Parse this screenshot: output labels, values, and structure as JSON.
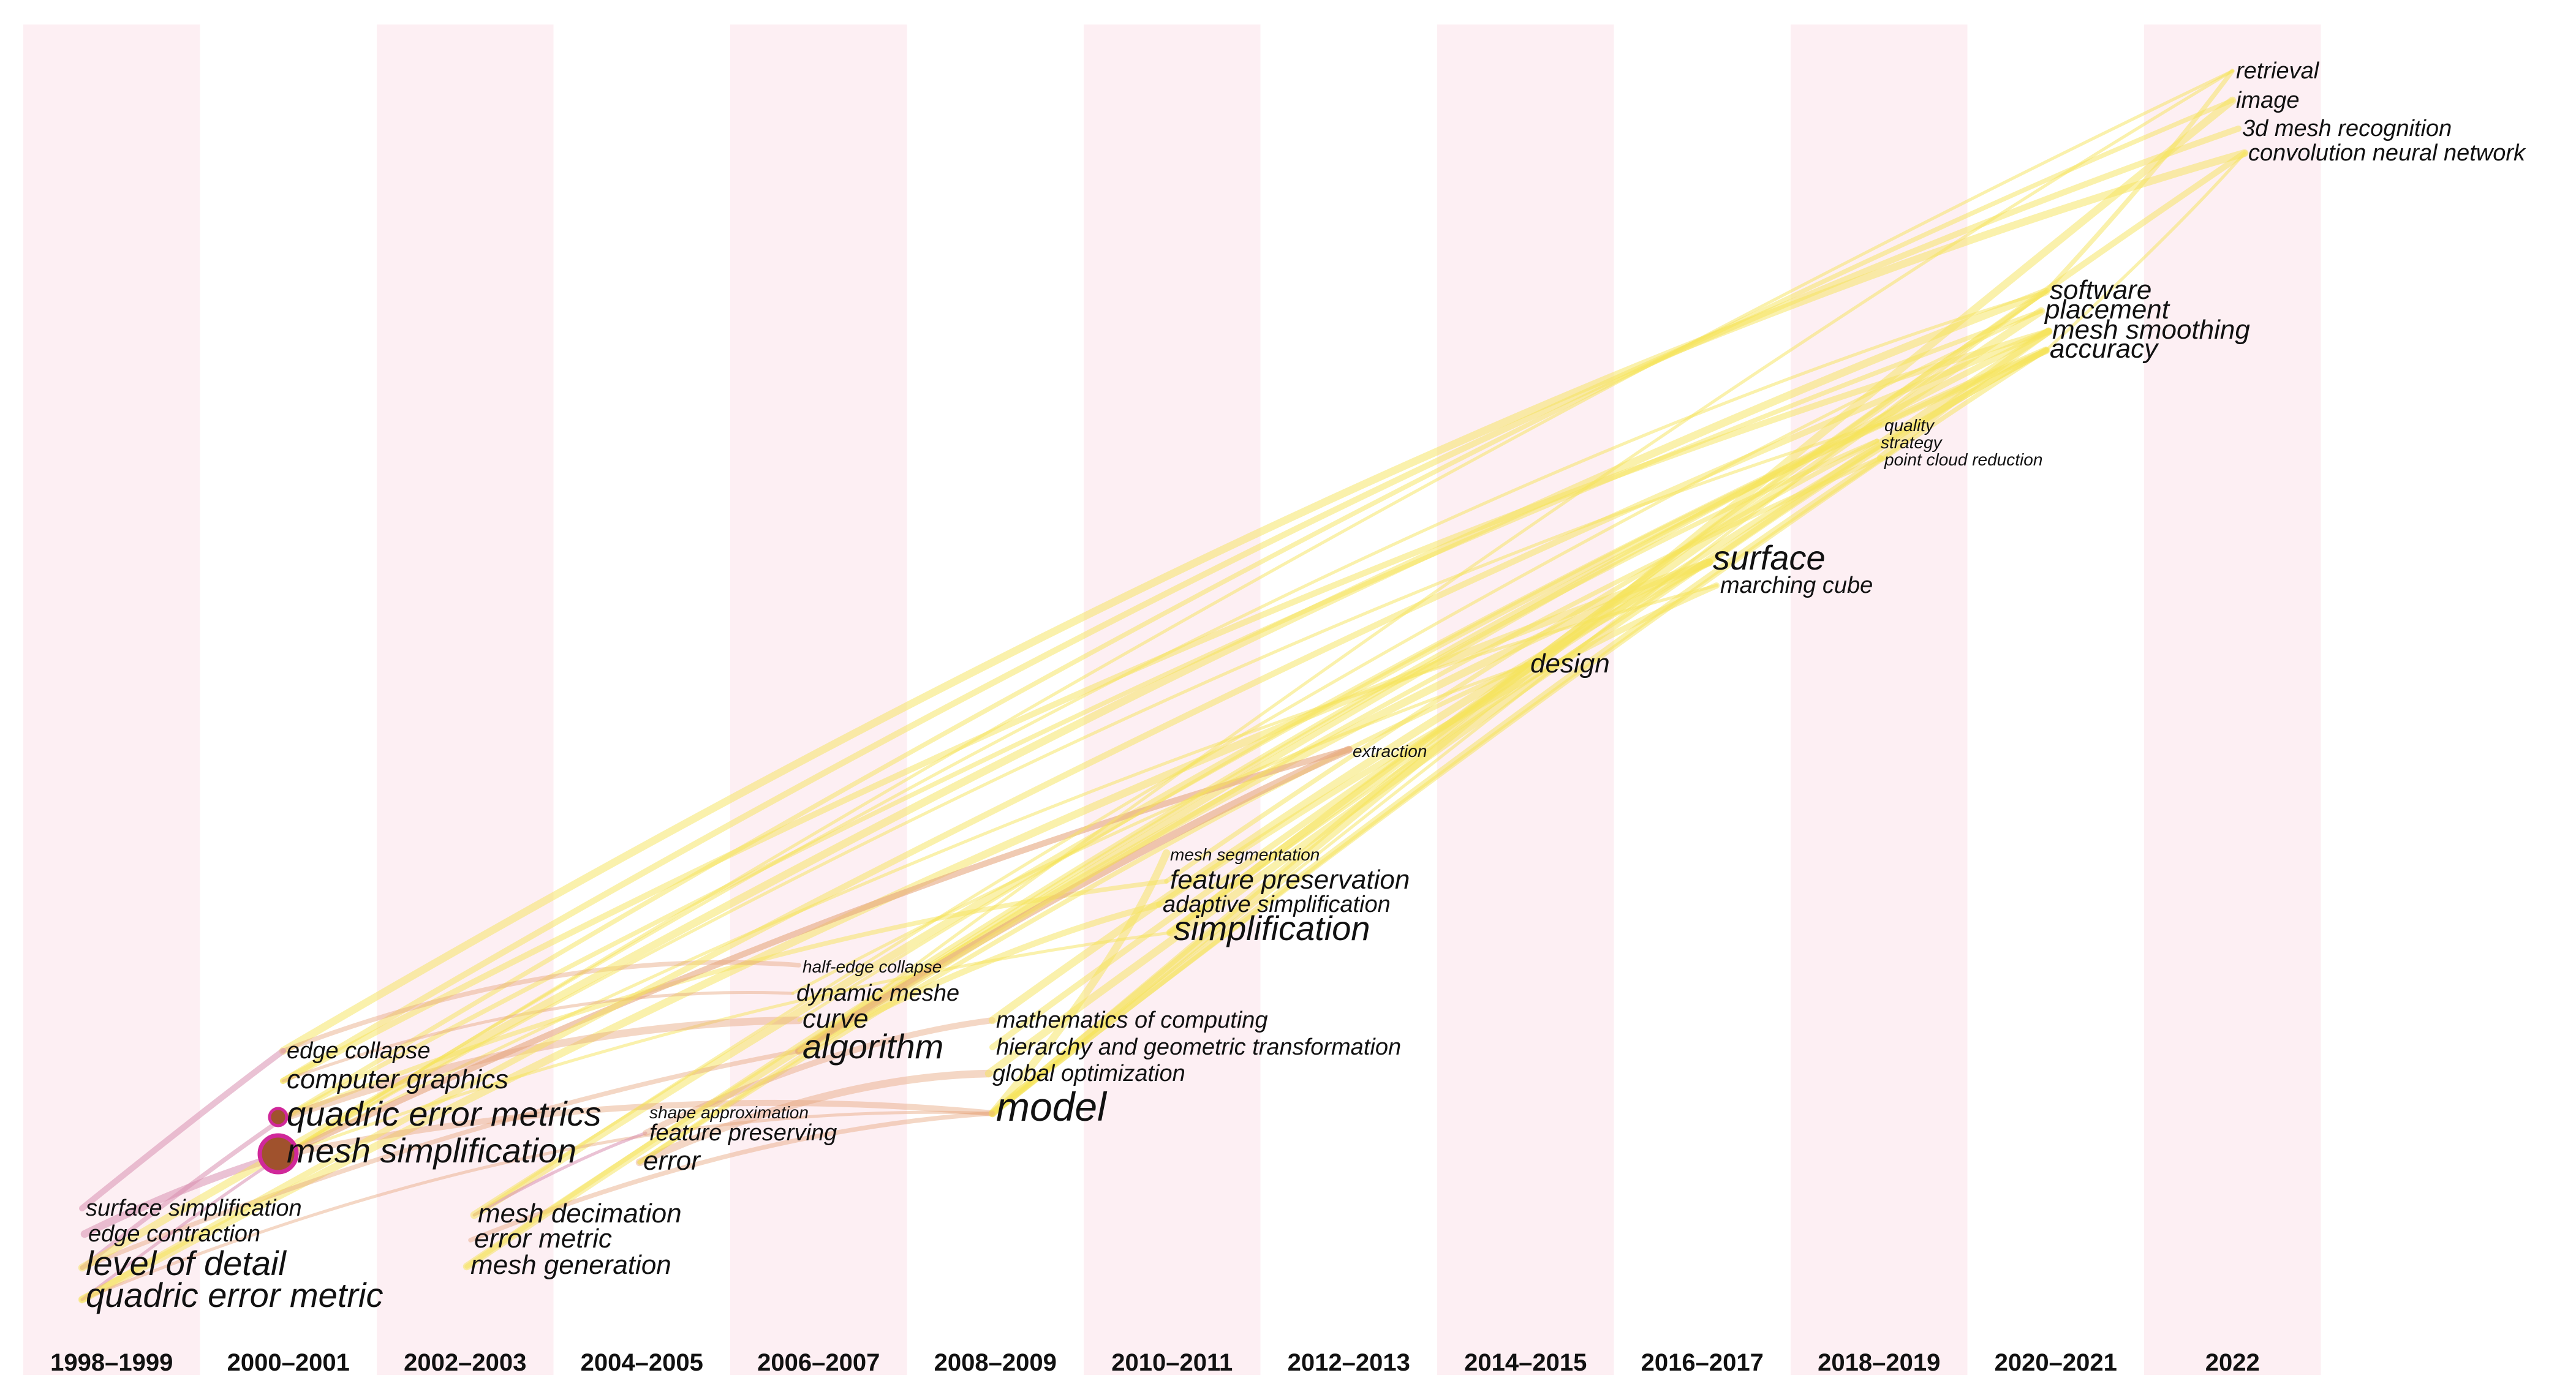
{
  "title": "",
  "years": [
    "1998-1999",
    "2000-2001",
    "2002-2003",
    "2004-2005",
    "2006-2007",
    "2008-2009",
    "2010-2011",
    "2012-2013",
    "2014-2015",
    "2016-2017",
    "2018-2019",
    "2020-2021",
    "2022"
  ],
  "colors": {
    "band": "#fdeff3",
    "early_link": "#d98fb0",
    "mid_link": "#e6a77f",
    "late_link": "#f5e35a",
    "node_fill": "#a0522d",
    "node_ring": "#d0289a"
  },
  "keywords": [
    {
      "label": "surface simplification",
      "year": "1998-1999",
      "size": "s",
      "row": 0
    },
    {
      "label": "edge contraction",
      "year": "1998-1999",
      "size": "s",
      "row": 1
    },
    {
      "label": "level of detail",
      "year": "1998-1999",
      "size": "l",
      "row": 2
    },
    {
      "label": "quadric error metric",
      "year": "1998-1999",
      "size": "l",
      "row": 3
    },
    {
      "label": "edge collapse",
      "year": "2000-2001",
      "size": "s",
      "row": 0
    },
    {
      "label": "computer graphics",
      "year": "2000-2001",
      "size": "m",
      "row": 1
    },
    {
      "label": "quadric error metrics",
      "year": "2000-2001",
      "size": "l",
      "row": 2
    },
    {
      "label": "mesh simplification",
      "year": "2000-2001",
      "size": "l",
      "row": 3
    },
    {
      "label": "mesh decimation",
      "year": "2002-2003",
      "size": "m",
      "row": 0
    },
    {
      "label": "error metric",
      "year": "2002-2003",
      "size": "m",
      "row": 1
    },
    {
      "label": "mesh generation",
      "year": "2002-2003",
      "size": "m",
      "row": 2
    },
    {
      "label": "shape approximation",
      "year": "2004-2005",
      "size": "xs",
      "row": 0
    },
    {
      "label": "feature preserving",
      "year": "2004-2005",
      "size": "s",
      "row": 1
    },
    {
      "label": "error",
      "year": "2004-2005",
      "size": "m",
      "row": 2
    },
    {
      "label": "half-edge collapse",
      "year": "2006-2007",
      "size": "xs",
      "row": 0
    },
    {
      "label": "dynamic meshe",
      "year": "2006-2007",
      "size": "s",
      "row": 1
    },
    {
      "label": "curve",
      "year": "2006-2007",
      "size": "m",
      "row": 2
    },
    {
      "label": "algorithm",
      "year": "2006-2007",
      "size": "l",
      "row": 3
    },
    {
      "label": "mathematics of computing",
      "year": "2008-2009",
      "size": "s",
      "row": 0
    },
    {
      "label": "hierarchy and geometric transformation",
      "year": "2008-2009",
      "size": "s",
      "row": 1
    },
    {
      "label": "global optimization",
      "year": "2008-2009",
      "size": "s",
      "row": 2
    },
    {
      "label": "model",
      "year": "2008-2009",
      "size": "xl",
      "row": 3
    },
    {
      "label": "mesh segmentation",
      "year": "2010-2011",
      "size": "xs",
      "row": 0
    },
    {
      "label": "feature preservation",
      "year": "2010-2011",
      "size": "m",
      "row": 1
    },
    {
      "label": "adaptive simplification",
      "year": "2010-2011",
      "size": "s",
      "row": 2
    },
    {
      "label": "simplification",
      "year": "2010-2011",
      "size": "l",
      "row": 3
    },
    {
      "label": "extraction",
      "year": "2012-2013",
      "size": "xs",
      "row": 0
    },
    {
      "label": "design",
      "year": "2014-2015",
      "size": "m",
      "row": 0
    },
    {
      "label": "surface",
      "year": "2016-2017",
      "size": "l",
      "row": 0
    },
    {
      "label": "marching cube",
      "year": "2016-2017",
      "size": "s",
      "row": 1
    },
    {
      "label": "quality",
      "year": "2018-2019",
      "size": "xs",
      "row": 0
    },
    {
      "label": "strategy",
      "year": "2018-2019",
      "size": "xs",
      "row": 1
    },
    {
      "label": "point cloud reduction",
      "year": "2018-2019",
      "size": "xs",
      "row": 2
    },
    {
      "label": "software",
      "year": "2020-2021",
      "size": "m",
      "row": 0
    },
    {
      "label": "placement",
      "year": "2020-2021",
      "size": "m",
      "row": 1
    },
    {
      "label": "mesh smoothing",
      "year": "2020-2021",
      "size": "m",
      "row": 2
    },
    {
      "label": "accuracy",
      "year": "2020-2021",
      "size": "m",
      "row": 3
    },
    {
      "label": "retrieval",
      "year": "2022",
      "size": "s",
      "row": 0
    },
    {
      "label": "image",
      "year": "2022",
      "size": "s",
      "row": 1
    },
    {
      "label": "3d mesh recognition",
      "year": "2022",
      "size": "s",
      "row": 2
    },
    {
      "label": "convolution neural network",
      "year": "2022",
      "size": "s",
      "row": 3
    }
  ]
}
